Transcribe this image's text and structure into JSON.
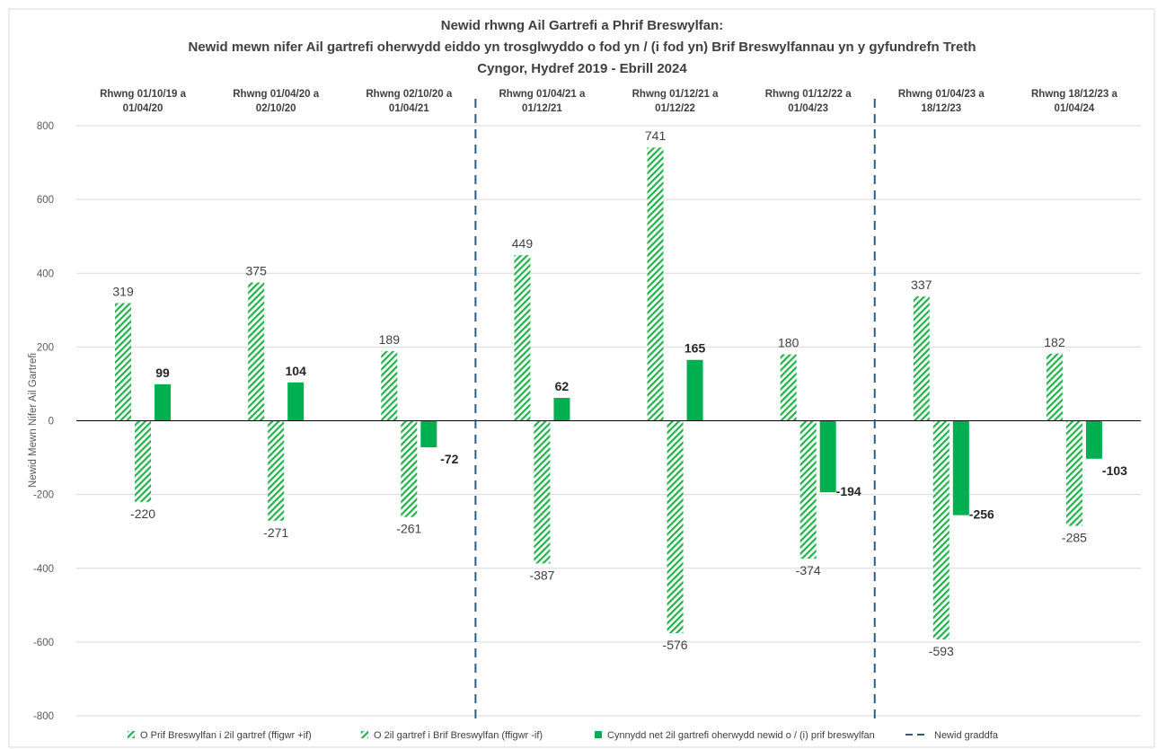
{
  "chart_data": {
    "type": "bar",
    "title": [
      "Newid rhwng Ail Gartrefi a Phrif Breswylfan:",
      "Newid mewn nifer Ail gartrefi oherwydd eiddo yn trosglwyddo o fod yn / (i fod yn) Brif Breswylfannau yn y gyfundrefn Treth",
      "Cyngor, Hydref 2019 - Ebrill 2024"
    ],
    "ylabel": "Newid Mewn Nifer Ail Gartrefi",
    "ylim": [
      -800,
      800
    ],
    "yticks": [
      800,
      600,
      400,
      200,
      0,
      -200,
      -400,
      -600,
      -800
    ],
    "grid": true,
    "legend_position": "bottom",
    "categories": [
      [
        "Rhwng 01/10/19 a",
        "01/04/20"
      ],
      [
        "Rhwng 01/04/20 a",
        "02/10/20"
      ],
      [
        "Rhwng 02/10/20 a",
        "01/04/21"
      ],
      [
        "Rhwng 01/04/21 a",
        "01/12/21"
      ],
      [
        "Rhwng 01/12/21 a",
        "01/12/22"
      ],
      [
        "Rhwng 01/12/22 a",
        "01/04/23"
      ],
      [
        "Rhwng 01/04/23 a",
        "18/12/23"
      ],
      [
        "Rhwng 18/12/23 a",
        "01/04/24"
      ]
    ],
    "series": [
      {
        "name": "O Prif Breswylfan i 2il gartref (ffigwr +if)",
        "pattern": "hatched",
        "color": "#21b24b",
        "values": [
          319,
          375,
          189,
          449,
          741,
          180,
          337,
          182
        ]
      },
      {
        "name": "O 2il gartref i Brif Breswylfan (ffigwr -if)",
        "pattern": "hatched",
        "color": "#21b24b",
        "values": [
          -220,
          -271,
          -261,
          -387,
          -576,
          -374,
          -593,
          -285
        ]
      },
      {
        "name": "Cynnydd net 2il gartrefi oherwydd newid o / (i) prif breswylfan",
        "pattern": "solid",
        "color": "#00b050",
        "values": [
          99,
          104,
          -72,
          62,
          165,
          -194,
          -256,
          -103
        ]
      }
    ],
    "scale_change": {
      "name": "Newid graddfa",
      "color": "#2e5b85",
      "after_category_index": [
        2,
        5
      ]
    }
  }
}
